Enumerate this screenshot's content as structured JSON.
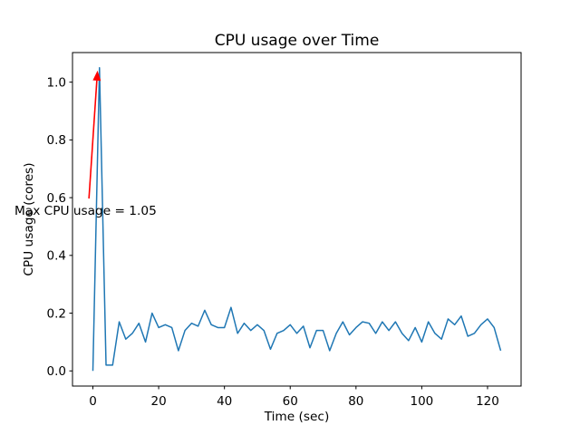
{
  "figure": {
    "background": "#ffffff"
  },
  "chart_data": {
    "type": "line",
    "title": "CPU usage over Time",
    "xlabel": "Time (sec)",
    "ylabel": "CPU usage (cores)",
    "grid": false,
    "legend": null,
    "line_color": "#1f77b4",
    "xlim": [
      -6.2,
      130.2
    ],
    "ylim": [
      -0.0525,
      1.1025
    ],
    "xticks": [
      0,
      20,
      40,
      60,
      80,
      100,
      120
    ],
    "xtick_labels": [
      "0",
      "20",
      "40",
      "60",
      "80",
      "100",
      "120"
    ],
    "yticks": [
      0.0,
      0.2,
      0.4,
      0.6,
      0.8,
      1.0
    ],
    "ytick_labels": [
      "0.0",
      "0.2",
      "0.4",
      "0.6",
      "0.8",
      "1.0"
    ],
    "x": [
      0,
      2,
      4,
      6,
      8,
      10,
      12,
      14,
      16,
      18,
      20,
      22,
      24,
      26,
      28,
      30,
      32,
      34,
      36,
      38,
      40,
      42,
      44,
      46,
      48,
      50,
      52,
      54,
      56,
      58,
      60,
      62,
      64,
      66,
      68,
      70,
      72,
      74,
      76,
      78,
      80,
      82,
      84,
      86,
      88,
      90,
      92,
      94,
      96,
      98,
      100,
      102,
      104,
      106,
      108,
      110,
      112,
      114,
      116,
      118,
      120,
      122,
      124
    ],
    "values": [
      0.0,
      1.05,
      0.02,
      0.02,
      0.17,
      0.11,
      0.13,
      0.165,
      0.1,
      0.2,
      0.15,
      0.16,
      0.15,
      0.07,
      0.14,
      0.165,
      0.155,
      0.21,
      0.16,
      0.15,
      0.15,
      0.22,
      0.13,
      0.165,
      0.14,
      0.16,
      0.14,
      0.075,
      0.13,
      0.14,
      0.16,
      0.13,
      0.155,
      0.08,
      0.14,
      0.14,
      0.07,
      0.13,
      0.17,
      0.125,
      0.15,
      0.17,
      0.165,
      0.13,
      0.17,
      0.14,
      0.17,
      0.13,
      0.105,
      0.15,
      0.1,
      0.17,
      0.13,
      0.11,
      0.18,
      0.16,
      0.19,
      0.12,
      0.13,
      0.16,
      0.18,
      0.15,
      0.07
    ],
    "max_value": 1.05,
    "annotation": {
      "text": "Max CPU usage = 1.05",
      "color": "#ff0000",
      "text_xy": [
        -23.8,
        0.535
      ],
      "arrow_from": [
        -1.2,
        0.597
      ],
      "arrow_to": [
        1.4,
        1.04
      ]
    }
  }
}
